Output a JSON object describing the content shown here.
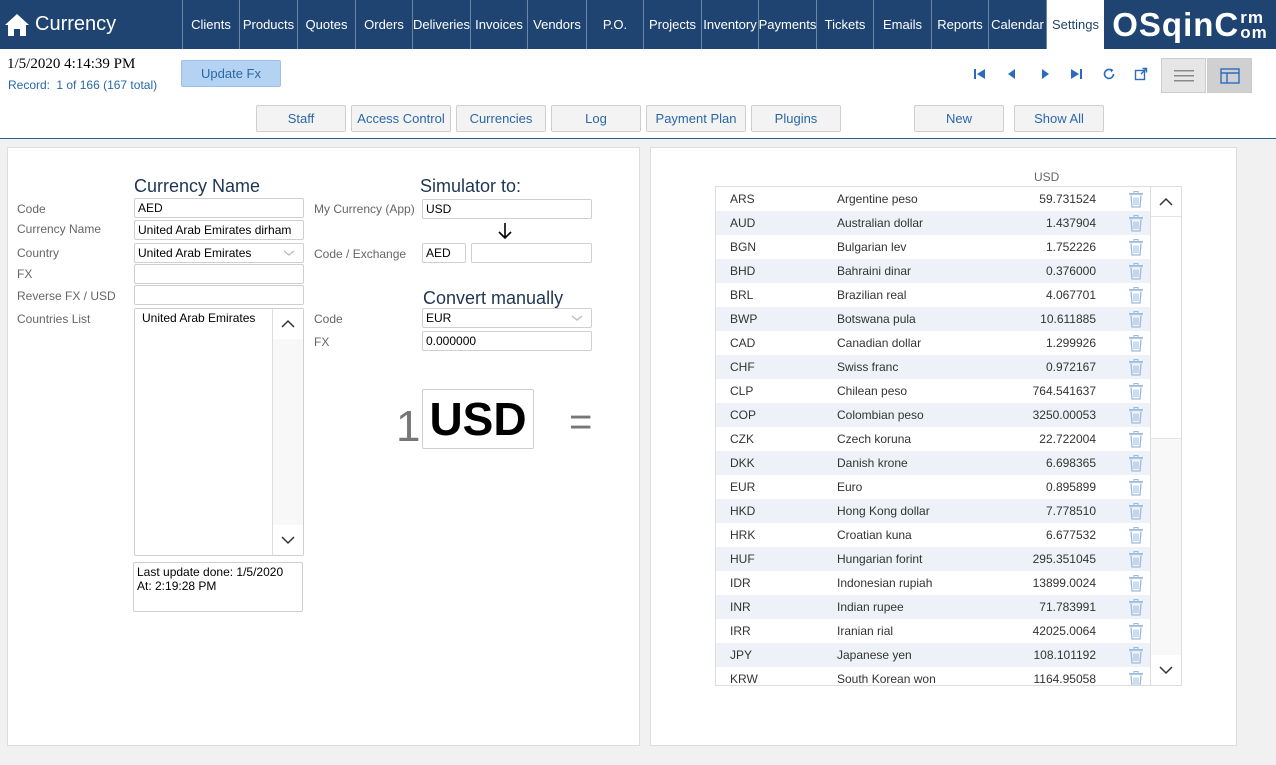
{
  "app": {
    "title": "Currency",
    "logo_main": "OSqin",
    "logo_c": "C",
    "logo_rm": "rm",
    "logo_om": "om"
  },
  "nav": [
    {
      "label": "Clients"
    },
    {
      "label": "Products"
    },
    {
      "label": "Quotes"
    },
    {
      "label": "Orders"
    },
    {
      "label": "Deliveries"
    },
    {
      "label": "Invoices"
    },
    {
      "label": "Vendors"
    },
    {
      "label": "P.O."
    },
    {
      "label": "Projects"
    },
    {
      "label": "Inventory"
    },
    {
      "label": "Payments"
    },
    {
      "label": "Tickets"
    },
    {
      "label": "Emails"
    },
    {
      "label": "Reports"
    },
    {
      "label": "Calendar"
    },
    {
      "label": "Settings",
      "active": true
    }
  ],
  "status": {
    "datetime": "1/5/2020 4:14:39 PM",
    "record_label": "Record:",
    "record_value": "1 of 166 (167 total)"
  },
  "buttons": {
    "update_fx": "Update Fx",
    "new": "New",
    "show_all": "Show All"
  },
  "tabs": [
    {
      "label": "Staff"
    },
    {
      "label": "Access Control"
    },
    {
      "label": "Currencies"
    },
    {
      "label": "Log"
    },
    {
      "label": "Payment Plan"
    },
    {
      "label": "Plugins"
    }
  ],
  "form": {
    "heading_currency_name": "Currency Name",
    "code_label": "Code",
    "code_value": "AED",
    "currency_name_label": "Currency Name",
    "currency_name_value": "United Arab Emirates dirham",
    "country_label": "Country",
    "country_value": "United Arab Emirates",
    "fx_label": "FX",
    "fx_value": "",
    "reverse_fx_label": "Reverse FX / USD",
    "reverse_fx_value": "",
    "countries_list_label": "Countries List",
    "countries_list": [
      "United Arab Emirates"
    ],
    "last_update_line1": "Last update done: 1/5/2020",
    "last_update_line2": "At: 2:19:28 PM"
  },
  "simulator": {
    "heading": "Simulator to:",
    "my_currency_label": "My  Currency (App)",
    "my_currency_value": "USD",
    "code_exchange_label": "Code / Exchange",
    "code_exchange_code": "AED",
    "code_exchange_value": "",
    "convert_heading": "Convert manually",
    "code_label": "Code",
    "code_value": "EUR",
    "fx_label": "FX",
    "fx_value": "0.000000",
    "big_amount": "1",
    "big_currency": "USD",
    "equals": "="
  },
  "table": {
    "column_header": "USD",
    "rows": [
      {
        "code": "ARS",
        "name": "Argentine peso",
        "rate": "59.731524"
      },
      {
        "code": "AUD",
        "name": "Australian dollar",
        "rate": "1.437904"
      },
      {
        "code": "BGN",
        "name": "Bulgarian lev",
        "rate": "1.752226"
      },
      {
        "code": "BHD",
        "name": "Bahraini dinar",
        "rate": "0.376000"
      },
      {
        "code": "BRL",
        "name": "Brazilian real",
        "rate": "4.067701"
      },
      {
        "code": "BWP",
        "name": "Botswana pula",
        "rate": "10.611885"
      },
      {
        "code": "CAD",
        "name": "Canadian dollar",
        "rate": "1.299926"
      },
      {
        "code": "CHF",
        "name": "Swiss franc",
        "rate": "0.972167"
      },
      {
        "code": "CLP",
        "name": "Chilean peso",
        "rate": "764.541637"
      },
      {
        "code": "COP",
        "name": "Colombian peso",
        "rate": "3250.00053"
      },
      {
        "code": "CZK",
        "name": "Czech koruna",
        "rate": "22.722004"
      },
      {
        "code": "DKK",
        "name": "Danish krone",
        "rate": "6.698365"
      },
      {
        "code": "EUR",
        "name": "Euro",
        "rate": "0.895899"
      },
      {
        "code": "HKD",
        "name": "Hong Kong dollar",
        "rate": "7.778510"
      },
      {
        "code": "HRK",
        "name": "Croatian kuna",
        "rate": "6.677532"
      },
      {
        "code": "HUF",
        "name": "Hungarian forint",
        "rate": "295.351045"
      },
      {
        "code": "IDR",
        "name": "Indonesian rupiah",
        "rate": "13899.0024"
      },
      {
        "code": "INR",
        "name": "Indian rupee",
        "rate": "71.783991"
      },
      {
        "code": "IRR",
        "name": "Iranian rial",
        "rate": "42025.0064"
      },
      {
        "code": "JPY",
        "name": "Japanese yen",
        "rate": "108.101192"
      },
      {
        "code": "KRW",
        "name": "South Korean won",
        "rate": "1164.95058"
      }
    ]
  },
  "colors": {
    "nav_bg": "#1f4471",
    "accent": "#2a67a8",
    "row_alt": "#eef1f7"
  }
}
